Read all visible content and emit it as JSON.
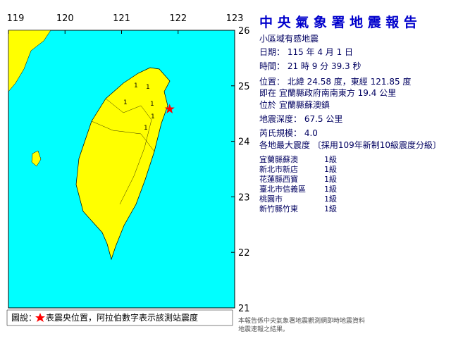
{
  "map": {
    "xlim": [
      119,
      123
    ],
    "ylim": [
      21,
      26
    ],
    "xticks": [
      119,
      120,
      121,
      122,
      123
    ],
    "yticks": [
      26,
      25,
      24,
      23,
      22,
      21
    ],
    "epicenter": {
      "lon": 121.85,
      "lat": 24.58,
      "color": "#ff0000"
    },
    "intensity_labels": [
      "1",
      "1",
      "1",
      "1",
      "1",
      "1"
    ]
  },
  "report": {
    "title": "中 央 氣 象 署 地 震 報 告",
    "subtitle": "小區域有感地震",
    "lines": [
      "日期： 115 年 4 月 1 日",
      "時間： 21 時 9 分 39.3 秒",
      "位置： 北緯 24.58 度，東經 121.85 度",
      "即在 宜蘭縣政府南南東方 19.4 公里",
      "位於 宜蘭縣蘇澳鎮",
      "地震深度： 67.5 公里",
      "芮氏規模： 4.0",
      "各地最大震度 〔採用109年新制10級震度分級〕"
    ],
    "stations": [
      [
        "宜蘭縣蘇澳",
        "1級"
      ],
      [
        "新北市新店",
        "1級"
      ],
      [
        "花蓮縣西寶",
        "1級"
      ],
      [
        "臺北市信義區",
        "1級"
      ],
      [
        "桃園市",
        "1級"
      ],
      [
        "新竹縣竹東",
        "1級"
      ]
    ]
  },
  "legend": {
    "prefix": "圖說：",
    "text": "表震央位置，阿拉伯數字表示該測站震度"
  },
  "footer": [
    "本報告係中央氣象署地震觀測網即時地震資料",
    "地震速報之結果。"
  ]
}
